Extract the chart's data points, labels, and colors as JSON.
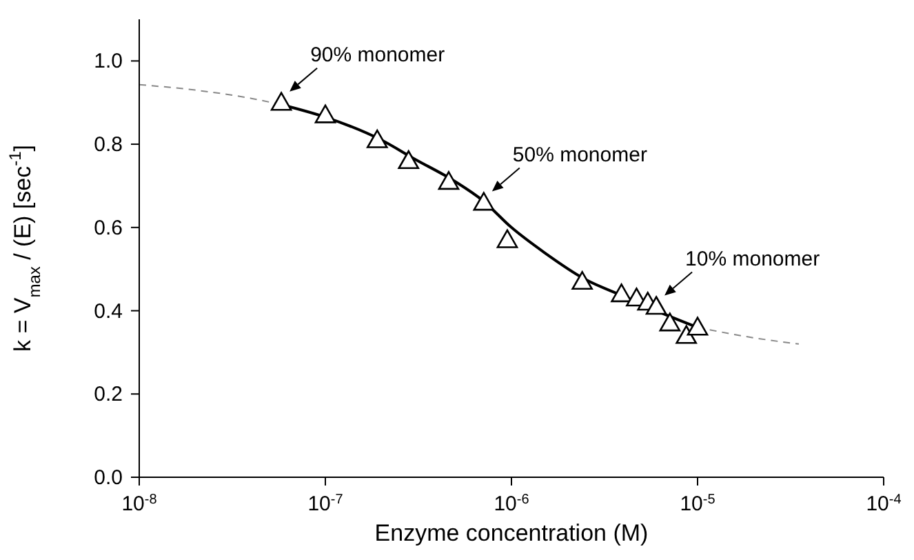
{
  "chart_data": {
    "type": "scatter",
    "xlabel": "Enzyme concentration (M)",
    "ylabel": "k = V$_{max}$ / (E)  [sec$^{-1}$]",
    "log": "x",
    "grid": false,
    "legend": false,
    "marker": "triangle",
    "xlim": [
      1e-08,
      0.0001
    ],
    "xticks": [
      {
        "value": 1e-08,
        "label": "10$^{-8}$"
      },
      {
        "value": 1e-07,
        "label": "10$^{-7}$"
      },
      {
        "value": 1e-06,
        "label": "10$^{-6}$"
      },
      {
        "value": 1e-05,
        "label": "10$^{-5}$"
      },
      {
        "value": 0.0001,
        "label": "10$^{-4}$"
      }
    ],
    "ylim": [
      0,
      1.1
    ],
    "yticks": [
      {
        "value": 0,
        "label": "0.0"
      },
      {
        "value": 0.2,
        "label": "0.2"
      },
      {
        "value": 0.4,
        "label": "0.4"
      },
      {
        "value": 0.6,
        "label": "0.6"
      },
      {
        "value": 0.8,
        "label": "0.8"
      },
      {
        "value": 1,
        "label": "1.0"
      }
    ],
    "series": [
      {
        "type": "line",
        "line_style": "dashed",
        "marker": "none",
        "color": "#888888",
        "x": [
          1e-08,
          2e-08,
          4e-08,
          5.8e-08
        ],
        "values": [
          0.943,
          0.93,
          0.91,
          0.895
        ]
      },
      {
        "type": "line",
        "line_style": "dashed",
        "marker": "none",
        "color": "#888888",
        "x": [
          1e-05,
          2e-05,
          3.5e-05
        ],
        "values": [
          0.36,
          0.335,
          0.32
        ]
      },
      {
        "type": "line",
        "line_style": "solid",
        "marker": "none",
        "color": "#000000",
        "x": [
          5.8e-08,
          1e-07,
          2e-07,
          3e-07,
          5e-07,
          7e-07,
          1e-06,
          1.5e-06,
          2.5e-06,
          4e-06,
          6e-06,
          1e-05
        ],
        "values": [
          0.895,
          0.865,
          0.81,
          0.765,
          0.71,
          0.665,
          0.6,
          0.54,
          0.475,
          0.435,
          0.4,
          0.36
        ]
      },
      {
        "type": "scatter",
        "color": "#000000",
        "x": [
          5.8e-08,
          1e-07,
          1.9e-07,
          2.8e-07,
          4.6e-07,
          7.1e-07,
          9.5e-07,
          2.4e-06,
          3.9e-06,
          4.7e-06,
          5.4e-06,
          6e-06,
          7.1e-06,
          8.7e-06,
          1e-05
        ],
        "values": [
          0.9,
          0.87,
          0.81,
          0.76,
          0.71,
          0.66,
          0.57,
          0.47,
          0.44,
          0.43,
          0.42,
          0.41,
          0.37,
          0.34,
          0.36
        ]
      }
    ],
    "annotations": [
      {
        "text": "90% monomer",
        "x": 5.8e-08,
        "y": 0.9
      },
      {
        "text": "50% monomer",
        "x": 7.1e-07,
        "y": 0.66
      },
      {
        "text": "10% monomer",
        "x": 6e-06,
        "y": 0.41
      }
    ]
  }
}
